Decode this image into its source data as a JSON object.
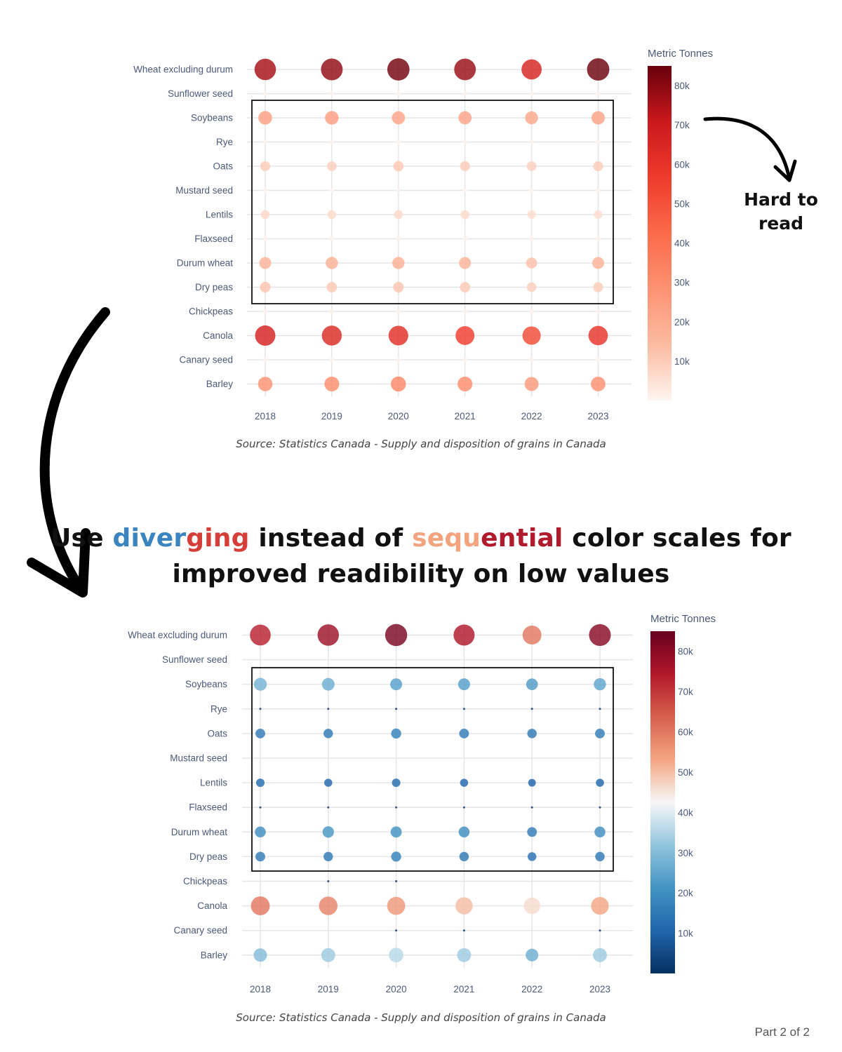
{
  "headline": {
    "w1": "Use ",
    "w2a": "diver",
    "w2b": "ging",
    "w3": " instead of ",
    "w4a": "sequ",
    "w4b": "ential",
    "w5": " color scales for",
    "w6": "improved readibility on low values"
  },
  "annotation": {
    "line1": "Hard to",
    "line2": "read"
  },
  "page_label": "Part 2 of 2",
  "colors": {
    "sequential_scale": [
      "#fff5f0",
      "#fcbba1",
      "#fc9272",
      "#fb6a4a",
      "#ef3b2c",
      "#cb181d",
      "#67000d"
    ],
    "diverging_scale": [
      "#053061",
      "#2166ac",
      "#4393c3",
      "#92c5de",
      "#f7f7f7",
      "#f4a582",
      "#d6604d",
      "#b2182b",
      "#67001f"
    ],
    "highlight_box": "#111111"
  },
  "chart_data": [
    {
      "type": "scatter",
      "subtype": "bubble",
      "color_scale": "sequential",
      "source": "Source: Statistics Canada - Supply and disposition of grains in Canada",
      "x": [
        "2018",
        "2019",
        "2020",
        "2021",
        "2022",
        "2023"
      ],
      "y_categories": [
        "Wheat excluding durum",
        "Sunflower seed",
        "Soybeans",
        "Rye",
        "Oats",
        "Mustard seed",
        "Lentils",
        "Flaxseed",
        "Durum wheat",
        "Dry peas",
        "Chickpeas",
        "Canola",
        "Canary seed",
        "Barley"
      ],
      "colorbar": {
        "title": "Metric Tonnes",
        "range": [
          0,
          85000
        ],
        "ticks": [
          10000,
          20000,
          30000,
          40000,
          50000,
          60000,
          70000,
          80000
        ],
        "tick_labels": [
          "10k",
          "20k",
          "30k",
          "40k",
          "50k",
          "60k",
          "70k",
          "80k"
        ]
      },
      "grid": true,
      "values": {
        "Wheat excluding durum": [
          76000,
          79000,
          83000,
          78000,
          66000,
          84000
        ],
        "Sunflower seed": [
          300,
          300,
          300,
          300,
          300,
          300
        ],
        "Soybeans": [
          24000,
          24000,
          22000,
          22000,
          21000,
          23000
        ],
        "Rye": [
          400,
          400,
          400,
          400,
          400,
          400
        ],
        "Oats": [
          10000,
          9000,
          11000,
          10000,
          9000,
          10000
        ],
        "Mustard seed": [
          300,
          300,
          300,
          300,
          300,
          300
        ],
        "Lentils": [
          7000,
          6500,
          7000,
          6500,
          6000,
          6000
        ],
        "Flaxseed": [
          600,
          600,
          600,
          600,
          600,
          600
        ],
        "Durum wheat": [
          17000,
          18000,
          18000,
          17000,
          13000,
          17000
        ],
        "Dry peas": [
          12000,
          11000,
          12000,
          11000,
          9000,
          10000
        ],
        "Chickpeas": [
          500,
          500,
          500,
          500,
          500,
          500
        ],
        "Canola": [
          67000,
          64000,
          62000,
          56000,
          52000,
          60000
        ],
        "Canary seed": [
          500,
          500,
          500,
          500,
          500,
          500
        ],
        "Barley": [
          28000,
          30000,
          32000,
          30000,
          26000,
          29000
        ]
      }
    },
    {
      "type": "scatter",
      "subtype": "bubble",
      "color_scale": "diverging",
      "source": "Source: Statistics Canada - Supply and disposition of grains in Canada",
      "x": [
        "2018",
        "2019",
        "2020",
        "2021",
        "2022",
        "2023"
      ],
      "y_categories": [
        "Wheat excluding durum",
        "Sunflower seed",
        "Soybeans",
        "Rye",
        "Oats",
        "Mustard seed",
        "Lentils",
        "Flaxseed",
        "Durum wheat",
        "Dry peas",
        "Chickpeas",
        "Canola",
        "Canary seed",
        "Barley"
      ],
      "colorbar": {
        "title": "Metric Tonnes",
        "range": [
          0,
          85000
        ],
        "ticks": [
          10000,
          20000,
          30000,
          40000,
          50000,
          60000,
          70000,
          80000
        ],
        "tick_labels": [
          "10k",
          "20k",
          "30k",
          "40k",
          "50k",
          "60k",
          "70k",
          "80k"
        ]
      },
      "grid": true,
      "values": {
        "Wheat excluding durum": [
          73000,
          77000,
          82000,
          75000,
          60000,
          80000
        ],
        "Sunflower seed": [
          0,
          0,
          0,
          0,
          0,
          0
        ],
        "Soybeans": [
          28000,
          27000,
          24000,
          24000,
          23000,
          25000
        ],
        "Rye": [
          800,
          600,
          800,
          800,
          700,
          800
        ],
        "Oats": [
          16000,
          15000,
          17000,
          16000,
          15000,
          16000
        ],
        "Mustard seed": [
          0,
          0,
          0,
          0,
          0,
          0
        ],
        "Lentils": [
          12000,
          11000,
          12000,
          11000,
          10000,
          11000
        ],
        "Flaxseed": [
          1000,
          900,
          900,
          900,
          800,
          900
        ],
        "Durum wheat": [
          20000,
          22000,
          21000,
          20000,
          16000,
          20000
        ],
        "Dry peas": [
          16000,
          15000,
          17000,
          15000,
          13000,
          15000
        ],
        "Chickpeas": [
          0,
          300,
          300,
          0,
          0,
          0
        ],
        "Canola": [
          60000,
          58000,
          55000,
          50000,
          46000,
          53000
        ],
        "Canary seed": [
          0,
          0,
          300,
          300,
          0,
          300
        ],
        "Barley": [
          30000,
          33000,
          36000,
          33000,
          27000,
          33000
        ]
      }
    }
  ]
}
